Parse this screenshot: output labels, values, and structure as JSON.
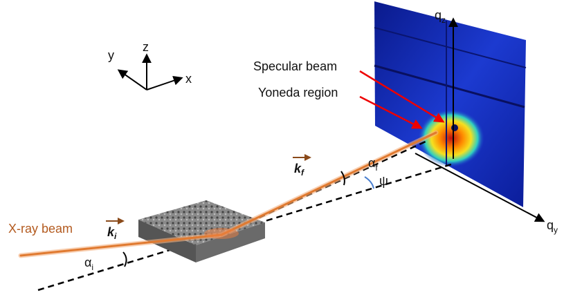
{
  "axes": {
    "x": "x",
    "y": "y",
    "z": "z"
  },
  "detector_axes": {
    "qz": {
      "base": "q",
      "sub": "z"
    },
    "qy": {
      "base": "q",
      "sub": "y"
    }
  },
  "annotations": {
    "specular": "Specular beam",
    "yoneda": "Yoneda region"
  },
  "beam": {
    "label": "X-ray beam",
    "ki": {
      "base": "k",
      "sub": "i"
    },
    "kf": {
      "base": "k",
      "sub": "f"
    }
  },
  "angles": {
    "alpha_i": {
      "base": "α",
      "sub": "i"
    },
    "alpha_f": {
      "base": "α",
      "sub": "f"
    },
    "psi": "ψ"
  }
}
